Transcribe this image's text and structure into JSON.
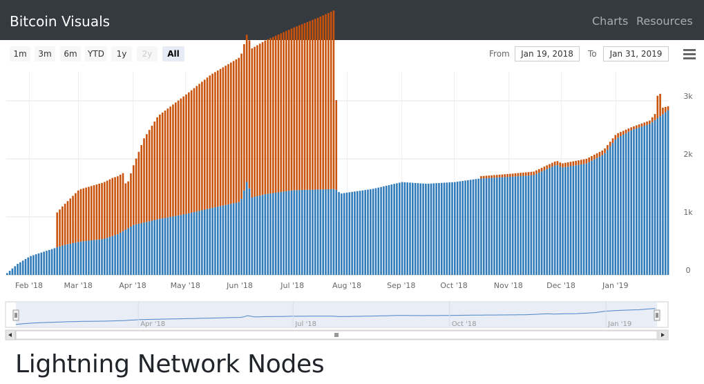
{
  "navbar": {
    "brand": "Bitcoin Visuals",
    "links": [
      "Charts",
      "Resources"
    ]
  },
  "range_selector": {
    "buttons": [
      {
        "label": "1m",
        "state": "normal"
      },
      {
        "label": "3m",
        "state": "normal"
      },
      {
        "label": "6m",
        "state": "normal"
      },
      {
        "label": "YTD",
        "state": "normal"
      },
      {
        "label": "1y",
        "state": "normal"
      },
      {
        "label": "2y",
        "state": "disabled"
      },
      {
        "label": "All",
        "state": "selected"
      }
    ],
    "from_label": "From",
    "from_value": "Jan 19, 2018",
    "to_label": "To",
    "to_value": "Jan 31, 2019"
  },
  "colors": {
    "navbar_bg": "#343a40",
    "blue_series": "#2f7ab9",
    "orange_series": "#c9530c",
    "navigator_fill": "#e6ebf5",
    "navigator_line": "#4a86c8"
  },
  "icons": [
    "menu-icon",
    "navigator-handle-icon",
    "scroll-left-arrow-icon",
    "scroll-right-arrow-icon",
    "scrollbar-grip-icon"
  ],
  "chart_data": {
    "type": "bar",
    "stacked": true,
    "grid": true,
    "legend": "none",
    "xlim": [
      "2018-01-19",
      "2019-01-31"
    ],
    "ylim": [
      0,
      3500
    ],
    "y_ticks": [
      0,
      1000,
      2000,
      3000
    ],
    "y_tick_labels": [
      "0",
      "1k",
      "2k",
      "3k"
    ],
    "x_tick_labels": [
      "Feb '18",
      "Mar '18",
      "Apr '18",
      "May '18",
      "Jun '18",
      "Jul '18",
      "Aug '18",
      "Sep '18",
      "Oct '18",
      "Nov '18",
      "Dec '18",
      "Jan '19"
    ],
    "x_tick_dates": [
      "2018-02-01",
      "2018-03-01",
      "2018-04-01",
      "2018-05-01",
      "2018-06-01",
      "2018-07-01",
      "2018-08-01",
      "2018-09-01",
      "2018-10-01",
      "2018-11-01",
      "2018-12-01",
      "2019-01-01"
    ],
    "navigator_tick_labels": [
      "Apr '18",
      "Jul '18",
      "Oct '18",
      "Jan '19"
    ],
    "navigator_tick_dates": [
      "2018-04-01",
      "2018-07-01",
      "2018-10-01",
      "2019-01-01"
    ],
    "series": [
      {
        "color": "#2f7ab9",
        "points": [
          [
            "2018-01-19",
            30
          ],
          [
            "2018-01-25",
            190
          ],
          [
            "2018-02-01",
            320
          ],
          [
            "2018-02-10",
            410
          ],
          [
            "2018-02-20",
            510
          ],
          [
            "2018-03-01",
            570
          ],
          [
            "2018-03-15",
            620
          ],
          [
            "2018-03-23",
            700
          ],
          [
            "2018-04-01",
            860
          ],
          [
            "2018-04-15",
            960
          ],
          [
            "2018-05-01",
            1050
          ],
          [
            "2018-05-15",
            1150
          ],
          [
            "2018-06-01",
            1260
          ],
          [
            "2018-06-05",
            1650
          ],
          [
            "2018-06-07",
            1330
          ],
          [
            "2018-06-15",
            1390
          ],
          [
            "2018-07-01",
            1460
          ],
          [
            "2018-07-25",
            1480
          ],
          [
            "2018-07-28",
            1400
          ],
          [
            "2018-08-01",
            1420
          ],
          [
            "2018-08-15",
            1480
          ],
          [
            "2018-09-01",
            1600
          ],
          [
            "2018-09-15",
            1570
          ],
          [
            "2018-10-01",
            1600
          ],
          [
            "2018-10-15",
            1660
          ],
          [
            "2018-11-01",
            1690
          ],
          [
            "2018-11-15",
            1720
          ],
          [
            "2018-11-28",
            1900
          ],
          [
            "2018-12-01",
            1850
          ],
          [
            "2018-12-15",
            1920
          ],
          [
            "2018-12-25",
            2080
          ],
          [
            "2019-01-01",
            2350
          ],
          [
            "2019-01-10",
            2500
          ],
          [
            "2019-01-20",
            2600
          ],
          [
            "2019-01-31",
            2850
          ]
        ]
      },
      {
        "color": "#c9530c",
        "points": [
          [
            "2018-01-19",
            0
          ],
          [
            "2018-02-15",
            0
          ],
          [
            "2018-02-16",
            590
          ],
          [
            "2018-03-01",
            900
          ],
          [
            "2018-03-20",
            1000
          ],
          [
            "2018-03-26",
            1000
          ],
          [
            "2018-03-28",
            730
          ],
          [
            "2018-04-01",
            1030
          ],
          [
            "2018-04-07",
            1450
          ],
          [
            "2018-04-15",
            1780
          ],
          [
            "2018-05-01",
            2060
          ],
          [
            "2018-05-15",
            2300
          ],
          [
            "2018-06-01",
            2500
          ],
          [
            "2018-06-15",
            2650
          ],
          [
            "2018-07-01",
            2800
          ],
          [
            "2018-07-15",
            2960
          ],
          [
            "2018-07-25",
            3090
          ],
          [
            "2018-07-26",
            0
          ],
          [
            "2018-10-15",
            0
          ],
          [
            "2018-10-16",
            40
          ],
          [
            "2018-11-15",
            60
          ],
          [
            "2018-12-15",
            80
          ],
          [
            "2019-01-01",
            80
          ],
          [
            "2019-01-10",
            50
          ],
          [
            "2019-01-20",
            60
          ],
          [
            "2019-01-24",
            120
          ],
          [
            "2019-01-25",
            650
          ],
          [
            "2019-01-27",
            120
          ],
          [
            "2019-01-31",
            60
          ]
        ]
      }
    ]
  },
  "page": {
    "heading": "Lightning Network Nodes"
  }
}
